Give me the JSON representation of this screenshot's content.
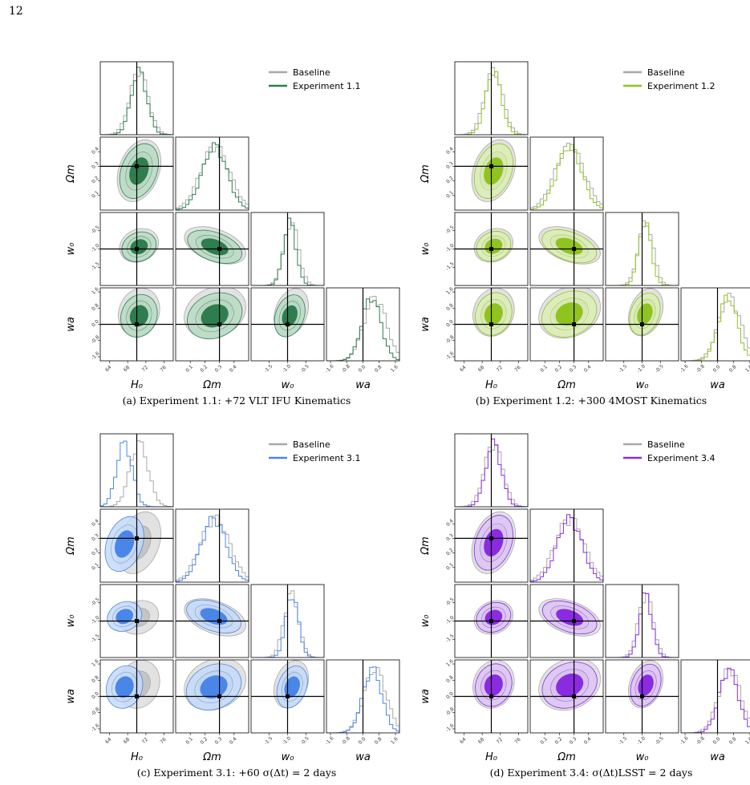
{
  "page_number": "12",
  "baseline_color": "#a8a8a8",
  "panels": [
    {
      "id": "a",
      "caption": "(a) Experiment 1.1: +72 VLT IFU Kinematics",
      "legend": [
        "Baseline",
        "Experiment 1.1"
      ],
      "color": "#2e7d4f",
      "fill_dark": "#2e7d4f",
      "fill_light": "#b9dbc4",
      "shift": {
        "H0": 0.0,
        "Om": -0.02,
        "w0": -0.08,
        "wa": -0.2
      }
    },
    {
      "id": "b",
      "caption": "(b) Experiment 1.2: +300 4MOST Kinematics",
      "legend": [
        "Baseline",
        "Experiment 1.2"
      ],
      "color": "#8fc31f",
      "fill_dark": "#8fc31f",
      "fill_light": "#dcedb5",
      "shift": {
        "H0": 0.0,
        "Om": -0.02,
        "w0": -0.05,
        "wa": -0.1
      }
    },
    {
      "id": "c",
      "caption": "(c) Experiment 3.1: +60 σ(Δt) = 2 days",
      "legend": [
        "Baseline",
        "Experiment 3.1"
      ],
      "color": "#4a86e8",
      "fill_dark": "#4a86e8",
      "fill_light": "#c5d9f7",
      "shift": {
        "H0": -0.8,
        "Om": -0.07,
        "w0": 0.05,
        "wa": -0.15
      }
    },
    {
      "id": "d",
      "caption": "(d) Experiment 3.4: σ(Δt)LSST = 2 days",
      "legend": [
        "Baseline",
        "Experiment 3.4"
      ],
      "color": "#8a2be2",
      "fill_dark": "#8a2be2",
      "fill_light": "#dcc4f3",
      "shift": {
        "H0": 0.0,
        "Om": 0.0,
        "w0": 0.0,
        "wa": -0.05
      }
    }
  ],
  "parameters": [
    {
      "name": "H0",
      "label": "H₀",
      "range": [
        62,
        78
      ],
      "truth": 70,
      "ticks": [
        "64",
        "68",
        "72",
        "76"
      ],
      "tickvals": [
        64,
        68,
        72,
        76
      ],
      "mean": 70.5,
      "sd": 2.0
    },
    {
      "name": "Om",
      "label": "Ωm",
      "range": [
        0.0,
        0.5
      ],
      "truth": 0.3,
      "ticks": [
        "0.1",
        "0.2",
        "0.3",
        "0.4",
        "0.5"
      ],
      "tickvals": [
        0.1,
        0.2,
        0.3,
        0.4,
        0.5
      ],
      "mean": 0.27,
      "sd": 0.1
    },
    {
      "name": "w0",
      "label": "w₀",
      "range": [
        -2.0,
        0.0
      ],
      "truth": -1.0,
      "ticks": [
        "-1.5",
        "-1.0",
        "-0.5",
        "0.0"
      ],
      "tickvals": [
        -1.5,
        -1.0,
        -0.5,
        0.0
      ],
      "mean": -0.9,
      "sd": 0.2
    },
    {
      "name": "wa",
      "label": "wa",
      "range": [
        -1.8,
        1.8
      ],
      "truth": 0.0,
      "ticks": [
        "-1.6",
        "-0.8",
        "0.0",
        "0.8",
        "1.6"
      ],
      "tickvals": [
        -1.6,
        -0.8,
        0.0,
        0.8,
        1.6
      ],
      "mean": 0.6,
      "sd": 0.55
    }
  ]
}
